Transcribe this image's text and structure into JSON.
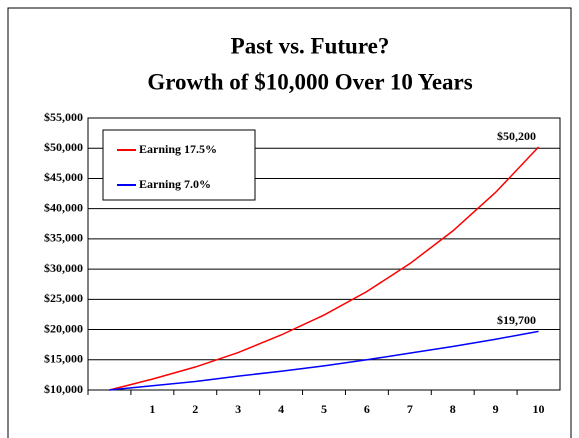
{
  "chart_data": {
    "type": "line",
    "title": [
      "Past vs. Future?",
      "Growth of $10,000 Over 10 Years"
    ],
    "categories": [
      null,
      "1",
      "2",
      "3",
      "4",
      "5",
      "6",
      "7",
      "8",
      "9",
      "10"
    ],
    "series": [
      {
        "name": "Earning 17.5%",
        "color": "#ff0000",
        "values": [
          10000,
          11800,
          13800,
          16200,
          19100,
          22400,
          26300,
          30900,
          36300,
          42700,
          50200
        ],
        "value_labels": [
          null,
          null,
          null,
          null,
          null,
          null,
          null,
          null,
          null,
          null,
          "$50,200"
        ]
      },
      {
        "name": "Earning 7.0%",
        "color": "#0000ff",
        "values": [
          10000,
          10700,
          11400,
          12300,
          13100,
          14000,
          15000,
          16100,
          17200,
          18400,
          19700
        ],
        "value_labels": [
          null,
          null,
          null,
          null,
          null,
          null,
          null,
          null,
          null,
          null,
          "$19,700"
        ]
      }
    ],
    "ylim": [
      10000,
      55000
    ],
    "yticks": [
      {
        "value": 10000,
        "label": "$10,000"
      },
      {
        "value": 15000,
        "label": "$15,000"
      },
      {
        "value": 20000,
        "label": "$20,000"
      },
      {
        "value": 25000,
        "label": "$25,000"
      },
      {
        "value": 30000,
        "label": "$30,000"
      },
      {
        "value": 35000,
        "label": "$35,000"
      },
      {
        "value": 40000,
        "label": "$40,000"
      },
      {
        "value": 45000,
        "label": "$45,000"
      },
      {
        "value": 50000,
        "label": "$50,000"
      },
      {
        "value": 55000,
        "label": "$55,000"
      }
    ],
    "grid": true,
    "legend": "upper-left"
  }
}
